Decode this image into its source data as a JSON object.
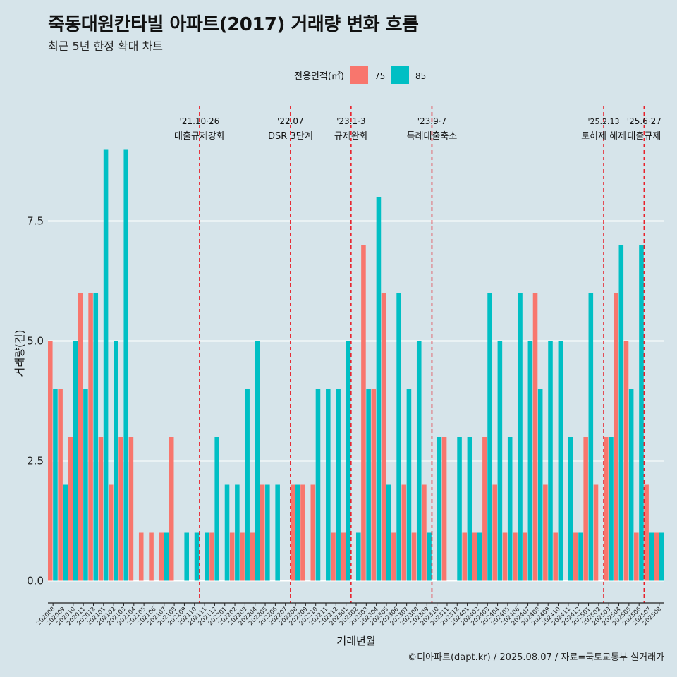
{
  "header": {
    "title": "죽동대원칸타빌 아파트(2017) 거래량 변화 흐름",
    "subtitle": "최근 5년 한정 확대 차트"
  },
  "caption": "©디아파트(dapt.kr) / 2025.08.07 / 자료=국토교통부 실거래가",
  "colors": {
    "background": "#d6e4ea",
    "s75": "#f8766d",
    "s85": "#00bfc4",
    "event_line": "#e8202a",
    "grid": "#ffffff"
  },
  "chart_data": {
    "type": "bar",
    "title": "죽동대원칸타빌 아파트(2017) 거래량 변화 흐름",
    "xlabel": "거래년월",
    "ylabel": "거래량(건)",
    "ylim": [
      -0.6,
      9.4
    ],
    "yticks": [
      0.0,
      2.5,
      5.0,
      7.5
    ],
    "ytick_labels": [
      "0.0",
      "2.5",
      "5.0",
      "7.5"
    ],
    "legend": {
      "title": "전용면적(㎡)",
      "position": "top",
      "entries": [
        "75",
        "85"
      ]
    },
    "categories": [
      "202008",
      "202009",
      "202010",
      "202011",
      "202012",
      "202101",
      "202102",
      "202103",
      "202104",
      "202105",
      "202106",
      "202107",
      "202108",
      "202109",
      "202110",
      "202111",
      "202112",
      "202201",
      "202202",
      "202203",
      "202204",
      "202205",
      "202206",
      "202207",
      "202208",
      "202209",
      "202210",
      "202211",
      "202212",
      "202301",
      "202302",
      "202303",
      "202304",
      "202305",
      "202306",
      "202307",
      "202308",
      "202309",
      "202310",
      "202311",
      "202312",
      "202401",
      "202402",
      "202403",
      "202404",
      "202405",
      "202406",
      "202407",
      "202408",
      "202409",
      "202410",
      "202411",
      "202412",
      "202501",
      "202502",
      "202503",
      "202504",
      "202505",
      "202506",
      "202507",
      "202508"
    ],
    "series": [
      {
        "name": "75",
        "values": [
          5,
          4,
          3,
          6,
          6,
          3,
          2,
          3,
          3,
          1,
          1,
          1,
          3,
          0,
          0,
          0,
          1,
          0,
          1,
          1,
          1,
          2,
          0,
          0,
          2,
          2,
          2,
          0,
          1,
          1,
          0,
          7,
          4,
          6,
          1,
          2,
          1,
          2,
          0,
          3,
          0,
          1,
          1,
          3,
          2,
          1,
          1,
          1,
          6,
          2,
          1,
          0,
          1,
          3,
          2,
          3,
          6,
          5,
          1,
          2,
          1
        ]
      },
      {
        "name": "85",
        "values": [
          4,
          2,
          5,
          4,
          6,
          9,
          5,
          9,
          0,
          0,
          0,
          1,
          0,
          1,
          1,
          1,
          3,
          2,
          2,
          4,
          5,
          2,
          2,
          0,
          2,
          0,
          4,
          4,
          4,
          5,
          1,
          4,
          8,
          2,
          6,
          4,
          5,
          1,
          3,
          0,
          3,
          3,
          1,
          6,
          5,
          3,
          6,
          5,
          4,
          5,
          5,
          3,
          1,
          6,
          0,
          3,
          7,
          4,
          7,
          1,
          1
        ]
      }
    ],
    "events": [
      {
        "after": "202110",
        "date": "'21.10·26",
        "label": "대출규제강화"
      },
      {
        "after": "202207",
        "date": "'22.07",
        "label": "DSR 3단계"
      },
      {
        "after": "202301",
        "date": "'23.1·3",
        "label": "규제완화"
      },
      {
        "after": "202309",
        "date": "'23.9·7",
        "label": "특례대출축소"
      },
      {
        "after": "202502",
        "date": "'25.2.13",
        "label": "토허제 해제"
      },
      {
        "after": "202506",
        "date": "'25.6·27",
        "label": "대출규제"
      }
    ]
  }
}
